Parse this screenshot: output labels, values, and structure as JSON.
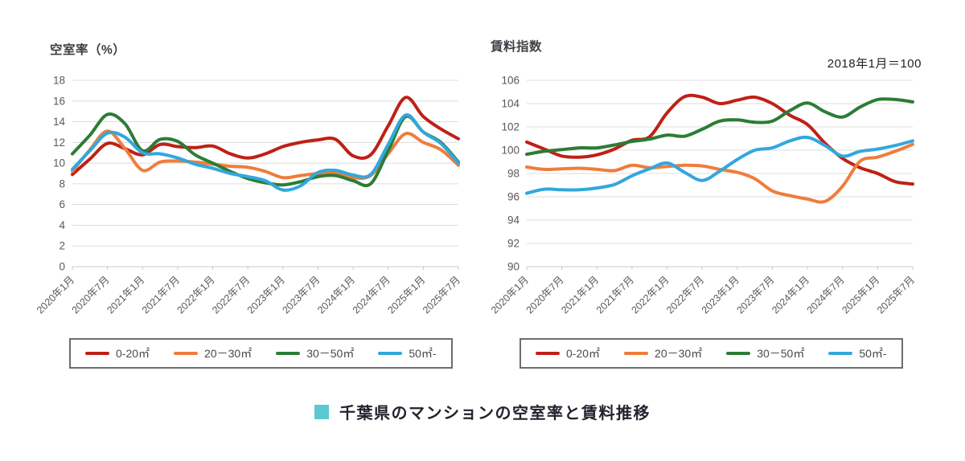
{
  "footer": {
    "marker_color": "#5bc9d1",
    "title": "千葉県のマンションの空室率と賃料推移"
  },
  "style": {
    "grid_color": "#dcdcdc",
    "axis_line_color": "#c9c9c9",
    "axis_label_color": "#595959",
    "series_colors": {
      "size_0_20": "#bf2016",
      "size_20_30": "#ee7d3c",
      "size_30_50": "#2c7c36",
      "size_50_plus": "#33a7dd"
    }
  },
  "chart_data": [
    {
      "id": "vacancy-rate-chart",
      "type": "line",
      "title": "空室率（%）",
      "note": "",
      "ylim": [
        0,
        18
      ],
      "ytick_step": 2,
      "grid": true,
      "legend_position": "bottom",
      "x_labels": [
        "2020年1月",
        "2020年7月",
        "2021年1月",
        "2021年7月",
        "2022年1月",
        "2022年7月",
        "2023年1月",
        "2023年7月",
        "2024年1月",
        "2024年7月",
        "2025年1月",
        "2025年7月"
      ],
      "x_note": "data points are quarterly; labels mark every second point",
      "series": [
        {
          "name": "0-20㎡",
          "color": "#bf2016",
          "values": [
            8.9,
            10.4,
            11.9,
            11.4,
            10.8,
            11.8,
            11.6,
            11.5,
            11.65,
            10.9,
            10.5,
            10.9,
            11.6,
            12.0,
            12.25,
            12.3,
            10.7,
            10.8,
            13.6,
            16.35,
            14.5,
            13.3,
            12.35
          ]
        },
        {
          "name": "20－30㎡",
          "color": "#ee7d3c",
          "values": [
            9.2,
            11.3,
            13.1,
            11.4,
            9.3,
            10.1,
            10.2,
            10.1,
            9.9,
            9.7,
            9.6,
            9.2,
            8.6,
            8.8,
            9.0,
            9.1,
            8.6,
            8.8,
            10.9,
            12.85,
            12.0,
            11.3,
            9.8
          ]
        },
        {
          "name": "30－50㎡",
          "color": "#2c7c36",
          "values": [
            10.9,
            12.7,
            14.7,
            13.8,
            11.2,
            12.3,
            12.1,
            10.8,
            10.0,
            9.2,
            8.5,
            8.1,
            7.9,
            8.2,
            8.7,
            8.8,
            8.3,
            8.0,
            11.2,
            14.5,
            13.0,
            12.0,
            10.1
          ]
        },
        {
          "name": "50㎡-",
          "color": "#33a7dd",
          "values": [
            9.4,
            11.2,
            12.9,
            12.5,
            11.0,
            10.9,
            10.5,
            9.9,
            9.5,
            9.0,
            8.7,
            8.3,
            7.4,
            7.8,
            9.1,
            9.3,
            8.85,
            8.9,
            11.8,
            14.65,
            13.0,
            11.9,
            10.0
          ]
        }
      ]
    },
    {
      "id": "rent-index-chart",
      "type": "line",
      "title": "賃料指数",
      "note": "2018年1月＝100",
      "ylim": [
        90,
        106
      ],
      "ytick_step": 2,
      "grid": true,
      "legend_position": "bottom",
      "x_labels": [
        "2020年1月",
        "2020年7月",
        "2021年1月",
        "2021年7月",
        "2022年1月",
        "2022年7月",
        "2023年1月",
        "2023年7月",
        "2024年1月",
        "2024年7月",
        "2025年1月",
        "2025年7月"
      ],
      "x_note": "data points are quarterly; labels mark every second point",
      "series": [
        {
          "name": "0-20㎡",
          "color": "#bf2016",
          "values": [
            100.7,
            100.1,
            99.5,
            99.4,
            99.6,
            100.1,
            100.85,
            101.15,
            103.2,
            104.6,
            104.55,
            104.0,
            104.3,
            104.55,
            104.0,
            103.0,
            102.2,
            100.6,
            99.3,
            98.5,
            98.0,
            97.3,
            97.1
          ]
        },
        {
          "name": "20－30㎡",
          "color": "#ee7d3c",
          "values": [
            98.55,
            98.35,
            98.4,
            98.45,
            98.35,
            98.25,
            98.7,
            98.5,
            98.6,
            98.7,
            98.65,
            98.35,
            98.1,
            97.55,
            96.5,
            96.1,
            95.8,
            95.6,
            96.9,
            99.05,
            99.4,
            99.9,
            100.5
          ]
        },
        {
          "name": "30－50㎡",
          "color": "#2c7c36",
          "values": [
            99.65,
            99.9,
            100.05,
            100.2,
            100.2,
            100.45,
            100.75,
            100.95,
            101.3,
            101.2,
            101.8,
            102.5,
            102.6,
            102.4,
            102.5,
            103.4,
            104.05,
            103.3,
            102.85,
            103.7,
            104.35,
            104.35,
            104.15
          ]
        },
        {
          "name": "50㎡-",
          "color": "#33a7dd",
          "values": [
            96.3,
            96.65,
            96.6,
            96.6,
            96.75,
            97.05,
            97.8,
            98.4,
            98.9,
            98.1,
            97.4,
            98.2,
            99.2,
            100.0,
            100.2,
            100.8,
            101.1,
            100.4,
            99.5,
            99.9,
            100.1,
            100.4,
            100.8
          ]
        }
      ]
    }
  ]
}
